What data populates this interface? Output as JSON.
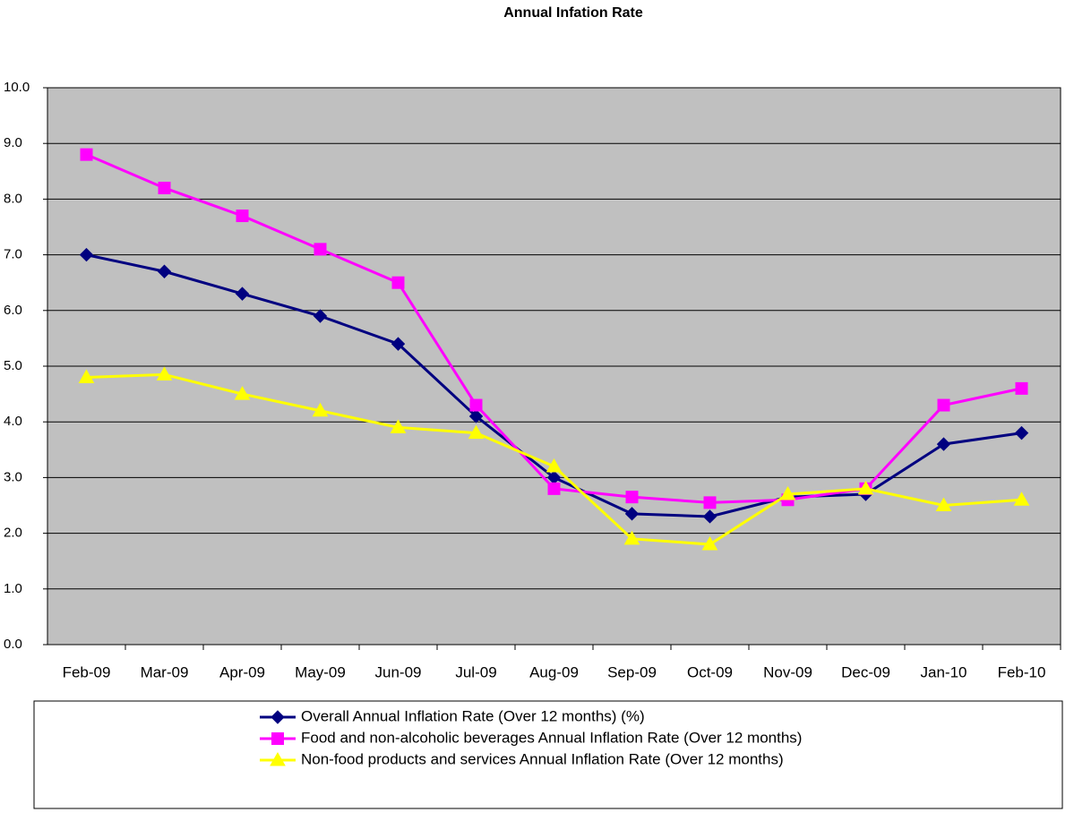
{
  "chart_data": {
    "type": "line",
    "title": "Annual Infation Rate",
    "categories": [
      "Feb-09",
      "Mar-09",
      "Apr-09",
      "May-09",
      "Jun-09",
      "Jul-09",
      "Aug-09",
      "Sep-09",
      "Oct-09",
      "Nov-09",
      "Dec-09",
      "Jan-10",
      "Feb-10"
    ],
    "series": [
      {
        "name": "Overall Annual Inflation Rate (Over 12 months) (%)",
        "color": "#000080",
        "marker": "diamond",
        "values": [
          7.0,
          6.7,
          6.3,
          5.9,
          5.4,
          4.1,
          3.0,
          2.35,
          2.3,
          2.65,
          2.7,
          3.6,
          3.8
        ]
      },
      {
        "name": "Food and non-alcoholic beverages Annual Inflation Rate (Over 12 months)",
        "color": "#ff00ff",
        "marker": "square",
        "values": [
          8.8,
          8.2,
          7.7,
          7.1,
          6.5,
          4.3,
          2.8,
          2.65,
          2.55,
          2.6,
          2.8,
          4.3,
          4.6
        ]
      },
      {
        "name": "Non-food products and services  Annual Inflation Rate (Over 12 months)",
        "color": "#ffff00",
        "marker": "triangle",
        "values": [
          4.8,
          4.85,
          4.5,
          4.2,
          3.9,
          3.8,
          3.2,
          1.9,
          1.8,
          2.7,
          2.8,
          2.5,
          2.6
        ]
      }
    ],
    "ylim": [
      0,
      10
    ],
    "yticks": [
      {
        "value": 0,
        "label": "0.0"
      },
      {
        "value": 1,
        "label": "1.0"
      },
      {
        "value": 2,
        "label": "2.0"
      },
      {
        "value": 3,
        "label": "3.0"
      },
      {
        "value": 4,
        "label": "4.0"
      },
      {
        "value": 5,
        "label": "5.0"
      },
      {
        "value": 6,
        "label": "6.0"
      },
      {
        "value": 7,
        "label": "7.0"
      },
      {
        "value": 8,
        "label": "8.0"
      },
      {
        "value": 9,
        "label": "9.0"
      },
      {
        "value": 10,
        "label": "10.0"
      }
    ],
    "grid": true,
    "background": "#c0c0c0",
    "legend": "bottom"
  }
}
